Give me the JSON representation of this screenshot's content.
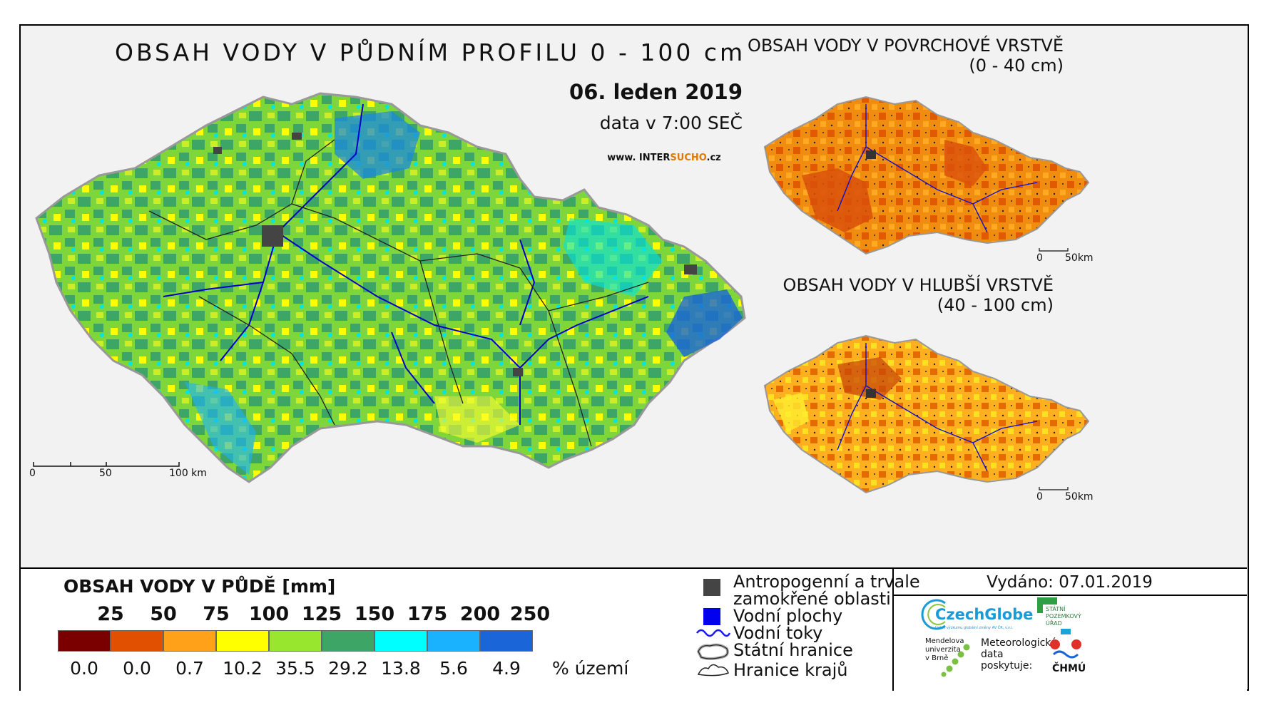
{
  "main_map": {
    "title": "OBSAH VODY V PŮDNÍM PROFILU 0 - 100 cm",
    "date": "06. leden 2019",
    "time": "data v 7:00 SEČ",
    "website_prefix": "www. INTER",
    "website_highlight": "SUCHO",
    "website_suffix": ".cz",
    "scale_labels": [
      "0",
      "50",
      "100 km"
    ]
  },
  "surface_map": {
    "title": "OBSAH VODY V POVRCHOVÉ VRSTVĚ",
    "subtitle": "(0 - 40 cm)",
    "scale_labels": [
      "0",
      "50km"
    ]
  },
  "deep_map": {
    "title": "OBSAH VODY V HLUBŠÍ VRSTVĚ",
    "subtitle": "(40 - 100 cm)",
    "scale_labels": [
      "0",
      "50km"
    ]
  },
  "legend": {
    "title": "OBSAH VODY V PŮDĚ [mm]",
    "breaks": [
      "25",
      "50",
      "75",
      "100",
      "125",
      "150",
      "175",
      "200",
      "250"
    ],
    "classes": [
      {
        "color": "#7a0000",
        "percent": "0.0"
      },
      {
        "color": "#e05000",
        "percent": "0.0"
      },
      {
        "color": "#ffa21a",
        "percent": "0.7"
      },
      {
        "color": "#ffff00",
        "percent": "10.2"
      },
      {
        "color": "#99e62e",
        "percent": "35.5"
      },
      {
        "color": "#3da565",
        "percent": "29.2"
      },
      {
        "color": "#00ffff",
        "percent": "13.8"
      },
      {
        "color": "#1ab2ff",
        "percent": "5.6"
      },
      {
        "color": "#1a66d9",
        "percent": "4.9"
      }
    ],
    "percent_unit": "% území"
  },
  "symbols": {
    "anthropogenic_line1": "Antropogenní a trvale",
    "anthropogenic_line2": "zamokřené oblasti",
    "water_bodies": "Vodní plochy",
    "rivers": "Vodní toky",
    "state_border": "Státní hranice",
    "region_border": "Hranice krajů",
    "colors": {
      "anthropogenic": "#444444",
      "water": "#0000ee",
      "river": "#1a1aff"
    }
  },
  "issued": "Vydáno: 07.01.2019",
  "logos": {
    "czechglobe": "CzechGlobe",
    "czechglobe_sub": "Ústav výzkumu globální změny AV ČR, v.v.i.",
    "spu_line1": "STÁTNÍ",
    "spu_line2": "POZEMKOVÝ",
    "spu_line3": "ÚŘAD",
    "mendel_line1": "Mendelova",
    "mendel_line2": "univerzita",
    "mendel_line3": "v Brně",
    "meteo_line1": "Meteorologická",
    "meteo_line2": "data",
    "meteo_line3": "poskytuje:",
    "chmu": "ČHMÚ"
  }
}
